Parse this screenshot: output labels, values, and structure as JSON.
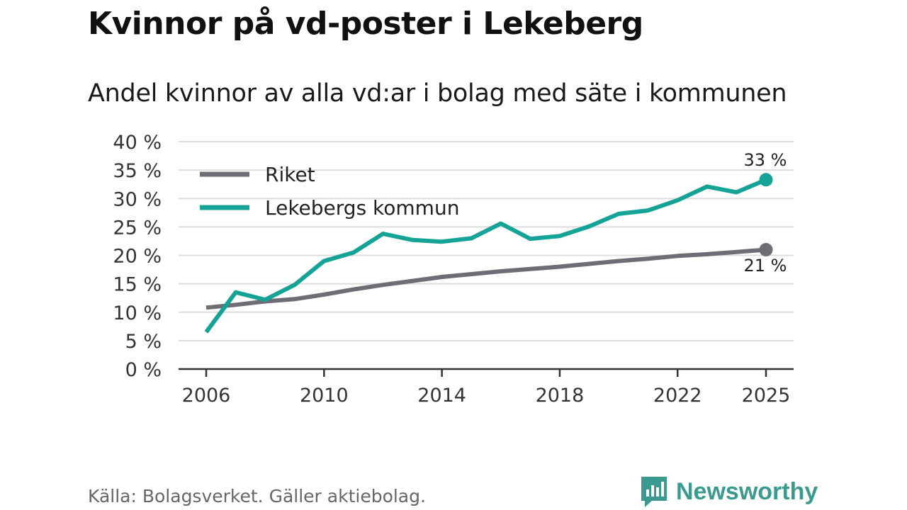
{
  "title": "Kvinnor på vd-poster i Lekeberg",
  "subtitle": "Andel kvinnor av alla vd:ar i bolag med säte i kommunen",
  "source": "Källa: Bolagsverket. Gäller aktiebolag.",
  "brand": {
    "name": "Newsworthy",
    "color": "#3a9a90"
  },
  "colors": {
    "riket": "#6e6d73",
    "lekeberg": "#14a396",
    "grid": "#dddddd",
    "axis": "#333333"
  },
  "chart_data": {
    "type": "line",
    "title": "Kvinnor på vd-poster i Lekeberg",
    "subtitle": "Andel kvinnor av alla vd:ar i bolag med säte i kommunen",
    "xlabel": "",
    "ylabel": "",
    "xlim": [
      2006,
      2025
    ],
    "ylim": [
      0,
      40
    ],
    "x_ticks": [
      2006,
      2010,
      2014,
      2018,
      2022,
      2025
    ],
    "y_ticks": [
      0,
      5,
      10,
      15,
      20,
      25,
      30,
      35,
      40
    ],
    "y_tick_labels": [
      "0 %",
      "5 %",
      "10 %",
      "15 %",
      "20 %",
      "25 %",
      "30 %",
      "35 %",
      "40 %"
    ],
    "grid": true,
    "legend_position": "top-left",
    "x": [
      2006,
      2007,
      2008,
      2009,
      2010,
      2011,
      2012,
      2013,
      2014,
      2015,
      2016,
      2017,
      2018,
      2019,
      2020,
      2021,
      2022,
      2023,
      2024,
      2025
    ],
    "series": [
      {
        "name": "Riket",
        "color": "#6e6d73",
        "values": [
          10.8,
          11.3,
          11.9,
          12.3,
          13.1,
          14.0,
          14.8,
          15.5,
          16.2,
          16.7,
          17.2,
          17.6,
          18.0,
          18.5,
          19.0,
          19.4,
          19.9,
          20.2,
          20.6,
          21.0
        ],
        "end_label": "21 %"
      },
      {
        "name": "Lekebergs kommun",
        "color": "#14a396",
        "values": [
          6.5,
          13.5,
          12.2,
          14.8,
          19.0,
          20.5,
          23.8,
          22.7,
          22.4,
          23.0,
          25.6,
          22.9,
          23.4,
          25.1,
          27.3,
          27.9,
          29.7,
          32.1,
          31.1,
          33.3
        ],
        "end_label": "33 %"
      }
    ]
  }
}
